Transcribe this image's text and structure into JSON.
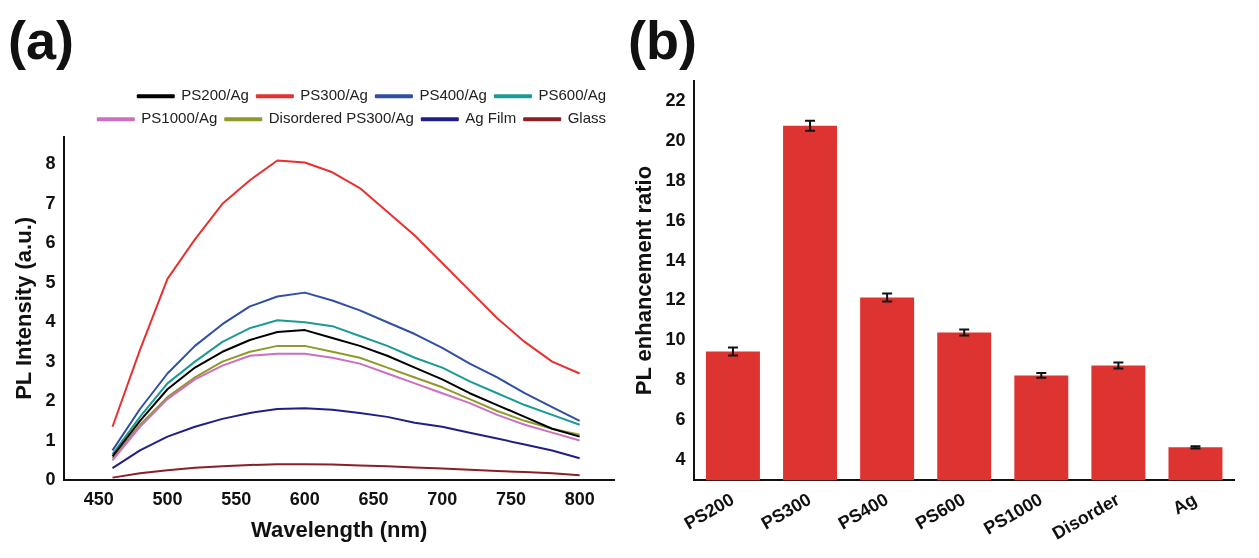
{
  "chart_data": [
    {
      "type": "line",
      "title": "(a)",
      "xlabel": "Wavelength (nm)",
      "ylabel": "PL Intensity (a.u.)",
      "xlim": [
        425,
        825
      ],
      "xticks": [
        450,
        500,
        550,
        600,
        650,
        700,
        750,
        800
      ],
      "ylim": [
        0,
        8.7
      ],
      "yticks": [
        0,
        1,
        2,
        3,
        4,
        5,
        6,
        7,
        8
      ],
      "grid": false,
      "legend": "top right",
      "marker": "none",
      "line_style": "solid",
      "x": [
        460,
        480,
        500,
        520,
        540,
        560,
        580,
        600,
        620,
        640,
        660,
        680,
        700,
        720,
        740,
        760,
        780,
        800
      ],
      "series": [
        {
          "name": "PS200/Ag",
          "color": "#000000",
          "values": [
            0.6,
            1.5,
            2.3,
            2.85,
            3.25,
            3.55,
            3.75,
            3.8,
            3.6,
            3.4,
            3.15,
            2.85,
            2.55,
            2.2,
            1.9,
            1.6,
            1.3,
            1.1
          ]
        },
        {
          "name": "PS300/Ag",
          "color": "#e8312f",
          "values": [
            1.35,
            3.3,
            5.1,
            6.1,
            7.0,
            7.6,
            8.1,
            8.05,
            7.8,
            7.4,
            6.8,
            6.2,
            5.5,
            4.8,
            4.1,
            3.5,
            3.0,
            2.7
          ]
        },
        {
          "name": "PS400/Ag",
          "color": "#2f4fa2",
          "values": [
            0.75,
            1.8,
            2.7,
            3.4,
            3.95,
            4.4,
            4.65,
            4.75,
            4.55,
            4.3,
            4.0,
            3.7,
            3.35,
            2.95,
            2.6,
            2.2,
            1.85,
            1.5
          ]
        },
        {
          "name": "PS600/Ag",
          "color": "#1a9a96",
          "values": [
            0.65,
            1.6,
            2.45,
            3.0,
            3.5,
            3.85,
            4.05,
            4.0,
            3.9,
            3.65,
            3.4,
            3.1,
            2.85,
            2.5,
            2.2,
            1.9,
            1.65,
            1.4
          ]
        },
        {
          "name": "PS1000/Ag",
          "color": "#cc6fc0",
          "values": [
            0.5,
            1.35,
            2.05,
            2.55,
            2.9,
            3.15,
            3.2,
            3.2,
            3.1,
            2.95,
            2.7,
            2.45,
            2.2,
            1.95,
            1.65,
            1.4,
            1.2,
            1.0
          ]
        },
        {
          "name": "Disordered PS300/Ag",
          "color": "#8f9a2a",
          "values": [
            0.55,
            1.4,
            2.1,
            2.6,
            3.0,
            3.25,
            3.4,
            3.4,
            3.25,
            3.1,
            2.85,
            2.6,
            2.35,
            2.05,
            1.75,
            1.5,
            1.3,
            1.15
          ]
        },
        {
          "name": "Ag Film",
          "color": "#1f1f86",
          "values": [
            0.3,
            0.75,
            1.1,
            1.35,
            1.55,
            1.7,
            1.8,
            1.82,
            1.78,
            1.7,
            1.6,
            1.45,
            1.35,
            1.2,
            1.05,
            0.9,
            0.75,
            0.55
          ]
        },
        {
          "name": "Glass",
          "color": "#8b1f28",
          "values": [
            0.06,
            0.17,
            0.25,
            0.31,
            0.35,
            0.38,
            0.4,
            0.4,
            0.39,
            0.37,
            0.35,
            0.32,
            0.29,
            0.26,
            0.23,
            0.2,
            0.17,
            0.12
          ]
        }
      ]
    },
    {
      "type": "bar",
      "title": "(b)",
      "ylabel": "PL enhancement ratio",
      "ylim": [
        3,
        23
      ],
      "yticks": [
        4,
        6,
        8,
        10,
        12,
        14,
        16,
        18,
        20,
        22
      ],
      "grid": false,
      "color": "#de3431",
      "categories": [
        "PS200",
        "PS300",
        "PS400",
        "PS600",
        "PS1000",
        "Disorder",
        "Ag"
      ],
      "values": [
        9.45,
        20.75,
        12.15,
        10.4,
        8.25,
        8.75,
        4.65
      ],
      "errors": [
        0.2,
        0.25,
        0.2,
        0.15,
        0.12,
        0.15,
        0.06
      ]
    }
  ]
}
